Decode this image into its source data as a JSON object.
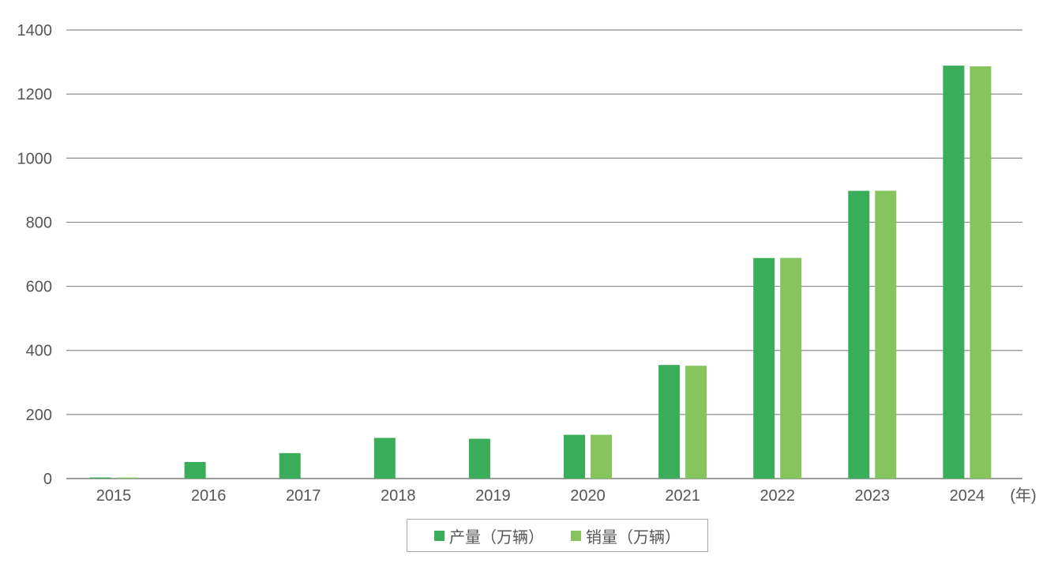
{
  "chart_data": {
    "type": "bar",
    "categories": [
      "2015",
      "2016",
      "2017",
      "2018",
      "2019",
      "2020",
      "2021",
      "2022",
      "2023",
      "2024"
    ],
    "x_unit": "(年)",
    "series": [
      {
        "name": "产量（万辆）",
        "color": "#3aad5a",
        "values": [
          3.4,
          51.6,
          79.4,
          127,
          124.2,
          136.6,
          354.5,
          688.4,
          898.1,
          1288.8
        ]
      },
      {
        "name": "销量（万辆）",
        "color": "#86c45e",
        "values": [
          3.3,
          null,
          null,
          null,
          null,
          136.7,
          352.1,
          688.7,
          898.4,
          1286.6
        ]
      }
    ],
    "ylim": [
      0,
      1400
    ],
    "yticks": [
      0,
      200,
      400,
      600,
      800,
      1000,
      1200,
      1400
    ],
    "grid": true,
    "legend_position": "bottom-center"
  }
}
